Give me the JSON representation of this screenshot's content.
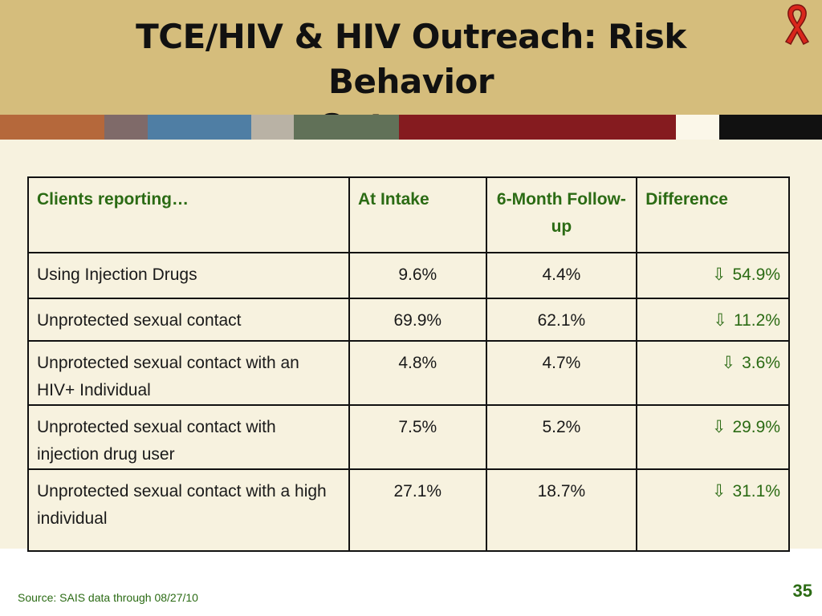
{
  "slide": {
    "title_line1": "TCE/HIV & HIV Outreach: Risk Behavior",
    "title_line2": "Outcomes",
    "ribbon_icon": "awareness-ribbon-icon",
    "colors": {
      "title_band": "#d5bd7c",
      "accent_green": "#2b6b14",
      "ribbon_red": "#d9261c"
    },
    "stripe_colors": [
      "#b5683b",
      "#7f6a69",
      "#4f7ea4",
      "#b9b2a5",
      "#617158",
      "#851b1f",
      "#fbf7e9",
      "#111111"
    ]
  },
  "table": {
    "headers": {
      "col1": "Clients reporting…",
      "col2": "At Intake",
      "col3": "6-Month Follow-up",
      "col4": "Difference"
    },
    "rows": [
      {
        "label": "Using Injection Drugs",
        "intake": "9.6%",
        "followup": "4.4%",
        "arrow": "⇩",
        "difference": "54.9%"
      },
      {
        "label": "Unprotected sexual contact",
        "intake": "69.9%",
        "followup": "62.1%",
        "arrow": "⇩",
        "difference": "11.2%"
      },
      {
        "label": "Unprotected sexual contact with an HIV+ Individual",
        "intake": "4.8%",
        "followup": "4.7%",
        "arrow": "⇩",
        "difference": "3.6%"
      },
      {
        "label": "Unprotected sexual contact with injection drug user",
        "intake": "7.5%",
        "followup": "5.2%",
        "arrow": "⇩",
        "difference": "29.9%"
      },
      {
        "label": "Unprotected sexual contact with a high individual",
        "intake": "27.1%",
        "followup": "18.7%",
        "arrow": "⇩",
        "difference": "31.1%"
      }
    ]
  },
  "footer": {
    "source": "Source: SAIS data through 08/27/10",
    "page_number": "35"
  }
}
